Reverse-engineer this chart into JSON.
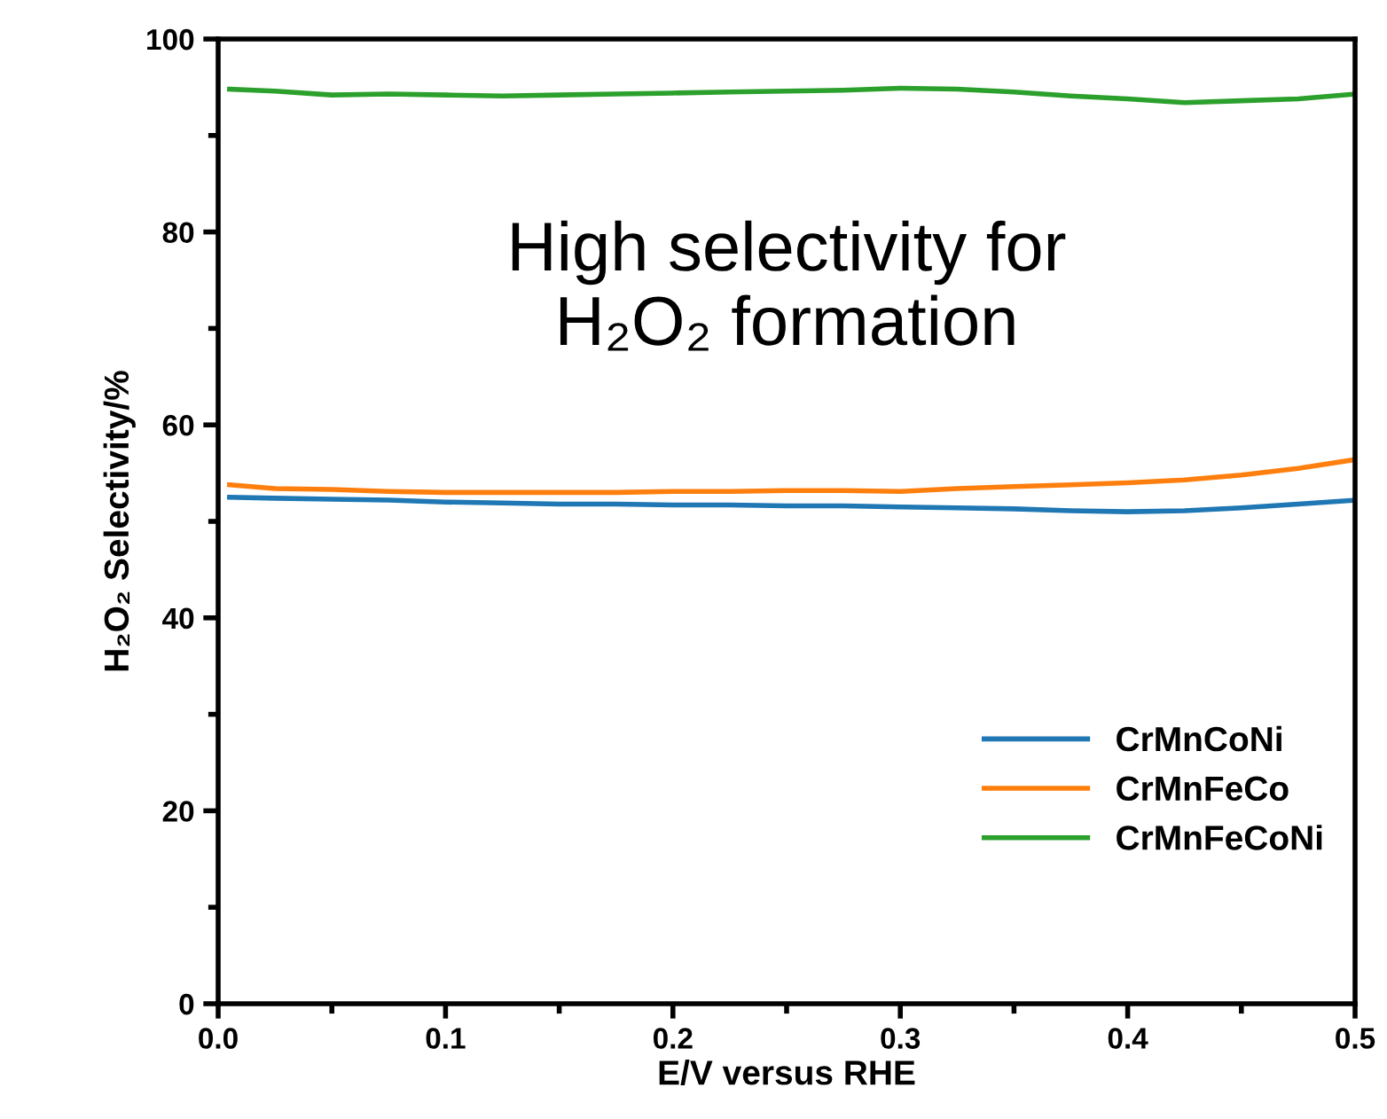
{
  "chart_data": {
    "type": "line",
    "xlabel": "E/V versus RHE",
    "ylabel": "H₂O₂ Selectivity/%",
    "x": [
      0.005,
      0.025,
      0.05,
      0.075,
      0.1,
      0.125,
      0.15,
      0.175,
      0.2,
      0.225,
      0.25,
      0.275,
      0.3,
      0.325,
      0.35,
      0.375,
      0.4,
      0.425,
      0.45,
      0.475,
      0.5
    ],
    "series": [
      {
        "name": "CrMnCoNi",
        "color": "#1f77b4",
        "values": [
          52.5,
          52.4,
          52.3,
          52.2,
          52.0,
          51.9,
          51.8,
          51.8,
          51.7,
          51.7,
          51.6,
          51.6,
          51.5,
          51.4,
          51.3,
          51.1,
          51.0,
          51.1,
          51.4,
          51.8,
          52.2
        ]
      },
      {
        "name": "CrMnFeCo",
        "color": "#ff7f0e",
        "values": [
          53.8,
          53.4,
          53.3,
          53.1,
          53.0,
          53.0,
          53.0,
          53.0,
          53.1,
          53.1,
          53.2,
          53.2,
          53.1,
          53.4,
          53.6,
          53.8,
          54.0,
          54.3,
          54.8,
          55.5,
          56.4
        ]
      },
      {
        "name": "CrMnFeCoNi",
        "color": "#2ca02c",
        "values": [
          94.8,
          94.6,
          94.2,
          94.3,
          94.2,
          94.1,
          94.2,
          94.3,
          94.4,
          94.5,
          94.6,
          94.7,
          94.9,
          94.8,
          94.5,
          94.1,
          93.8,
          93.4,
          93.6,
          93.8,
          94.3
        ]
      }
    ],
    "xlim": [
      0,
      0.5
    ],
    "xticks": [
      {
        "value": 0,
        "label": "0.0"
      },
      0.1,
      0.2,
      0.3,
      0.4,
      0.5
    ],
    "ylim": [
      0,
      100
    ],
    "yticks": [
      0,
      20,
      40,
      60,
      80,
      100
    ],
    "annotations": [
      "High selectivity for\nH₂O₂ formation"
    ],
    "legend": "bottom right",
    "grid": false,
    "marker": "none",
    "line_style": "solid"
  }
}
